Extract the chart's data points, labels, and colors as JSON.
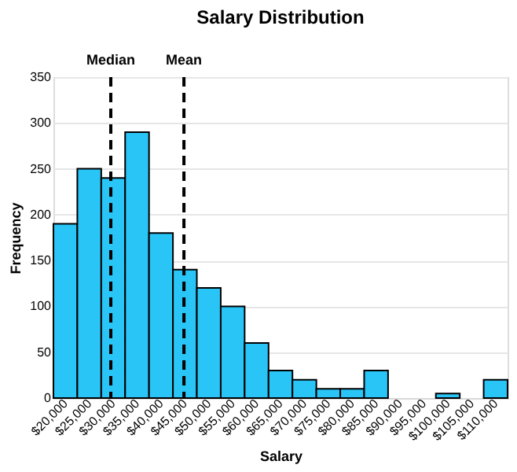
{
  "chart_data": {
    "type": "histogram",
    "title": "Salary Distribution",
    "xlabel": "Salary",
    "ylabel": "Frequency",
    "bins": [
      17500,
      22500,
      27500,
      32500,
      37500,
      42500,
      47500,
      52500,
      57500,
      62500,
      67500,
      72500,
      77500,
      82500,
      87500,
      92500,
      97500,
      102500,
      107500,
      112500
    ],
    "values": [
      190,
      250,
      240,
      290,
      180,
      140,
      120,
      100,
      60,
      30,
      20,
      10,
      10,
      30,
      0,
      0,
      5,
      0,
      20
    ],
    "color": "#29c5f6",
    "xlim": [
      17500,
      112500
    ],
    "xticks": [
      {
        "value": 20000,
        "label": "$20,000"
      },
      {
        "value": 25000,
        "label": "$25,000"
      },
      {
        "value": 30000,
        "label": "$30,000"
      },
      {
        "value": 35000,
        "label": "$35,000"
      },
      {
        "value": 40000,
        "label": "$40,000"
      },
      {
        "value": 45000,
        "label": "$45,000"
      },
      {
        "value": 50000,
        "label": "$50,000"
      },
      {
        "value": 55000,
        "label": "$55,000"
      },
      {
        "value": 60000,
        "label": "$60,000"
      },
      {
        "value": 65000,
        "label": "$65,000"
      },
      {
        "value": 70000,
        "label": "$70,000"
      },
      {
        "value": 75000,
        "label": "$75,000"
      },
      {
        "value": 80000,
        "label": "$80,000"
      },
      {
        "value": 85000,
        "label": "$85,000"
      },
      {
        "value": 90000,
        "label": "$90,000"
      },
      {
        "value": 95000,
        "label": "$95,000"
      },
      {
        "value": 100000,
        "label": "$100,000"
      },
      {
        "value": 105000,
        "label": "$105,000"
      },
      {
        "value": 110000,
        "label": "$110,000"
      }
    ],
    "ylim": [
      0,
      350
    ],
    "yticks": [
      0,
      50,
      100,
      150,
      200,
      250,
      300,
      350
    ],
    "grid": "y",
    "ref_lines": [
      {
        "axis": "x",
        "value": 29500,
        "label": "Median",
        "color": "#000000",
        "line_style": "dashed"
      },
      {
        "axis": "x",
        "value": 44800,
        "label": "Mean",
        "color": "#000000",
        "line_style": "dashed"
      }
    ]
  }
}
